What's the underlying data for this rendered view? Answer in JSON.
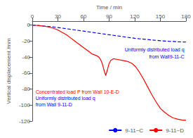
{
  "chart_data": {
    "type": "line",
    "xlabel": "Time / min",
    "ylabel": "Vertical displacement /mm",
    "xlim": [
      0,
      180
    ],
    "ylim": [
      -120,
      5
    ],
    "xticks": [
      0,
      30,
      60,
      90,
      120,
      150,
      180
    ],
    "yticks": [
      0,
      -20,
      -40,
      -60,
      -80,
      -100,
      -120
    ],
    "grid": false,
    "legend": "lower right",
    "series": [
      {
        "name": "9-11~C",
        "color": "#0000ff",
        "line_style": "dashed",
        "x": [
          0,
          10,
          20,
          30,
          40,
          50,
          60,
          70,
          80,
          90,
          100,
          110,
          120,
          130,
          140,
          150,
          160,
          170,
          180
        ],
        "values": [
          0,
          -0.8,
          -1.8,
          -3.0,
          -4.5,
          -6.0,
          -7.5,
          -9.0,
          -10.5,
          -12.0,
          -13.5,
          -15.0,
          -16.5,
          -17.5,
          -18.5,
          -19.5,
          -20.2,
          -20.8,
          -21.2
        ]
      },
      {
        "name": "9-11~D",
        "color": "#ff0000",
        "line_style": "solid",
        "x": [
          0,
          5,
          10,
          15,
          20,
          25,
          30,
          35,
          40,
          45,
          50,
          55,
          60,
          65,
          70,
          75,
          78,
          80,
          82,
          84,
          86,
          88,
          90,
          92,
          95,
          100,
          105,
          110,
          113,
          115,
          117,
          119,
          121,
          125,
          130,
          135,
          140,
          145,
          150,
          155,
          160,
          165,
          170,
          175,
          180
        ],
        "values": [
          0,
          -0.3,
          -0.8,
          -1.5,
          -2.5,
          -4,
          -6,
          -9,
          -12,
          -16,
          -20,
          -24,
          -28,
          -32,
          -36,
          -38,
          -40,
          -43,
          -48,
          -56,
          -63,
          -56,
          -48,
          -44,
          -42,
          -43,
          -44,
          -45,
          -46,
          -47,
          -48,
          -50,
          -52,
          -58,
          -67,
          -77,
          -87,
          -96,
          -104,
          -109,
          -113,
          -116,
          -117.5,
          -118.5,
          -119
        ]
      }
    ],
    "annotations": [
      {
        "text": "Uniformly distributed load q",
        "color": "blue"
      },
      {
        "text": "from Wall9-11-C",
        "color": "blue"
      },
      {
        "text": "Concentrated load P from Wall 10-E-D",
        "color": "red"
      },
      {
        "text": "Uniformly distributed load q",
        "color": "blue"
      },
      {
        "text": "from Wall 9-11-D",
        "color": "blue"
      }
    ]
  }
}
